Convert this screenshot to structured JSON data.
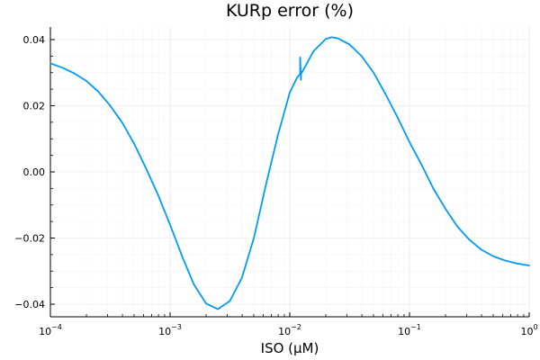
{
  "chart_data": {
    "type": "line",
    "title": "KURp error (%)",
    "xlabel": "ISO (μM)",
    "ylabel": "",
    "xscale": "log",
    "xlim": [
      0.0001,
      1
    ],
    "ylim": [
      -0.0438,
      0.0438
    ],
    "grid": true,
    "legend": "none",
    "x_ticks": [
      {
        "value": 0.0001,
        "base": "10",
        "exp": "−4"
      },
      {
        "value": 0.001,
        "base": "10",
        "exp": "−3"
      },
      {
        "value": 0.01,
        "base": "10",
        "exp": "−2"
      },
      {
        "value": 0.1,
        "base": "10",
        "exp": "−1"
      },
      {
        "value": 1,
        "base": "10",
        "exp": "0"
      }
    ],
    "y_ticks": [
      {
        "value": 0.04,
        "label": "0.04"
      },
      {
        "value": 0.02,
        "label": "0.02"
      },
      {
        "value": 0.0,
        "label": "0.00"
      },
      {
        "value": -0.02,
        "label": "−0.02"
      },
      {
        "value": -0.04,
        "label": "−0.04"
      }
    ],
    "series": [
      {
        "color": "#009af9",
        "x": [
          0.0001,
          0.000126,
          0.000158,
          0.0002,
          0.000251,
          0.000316,
          0.000398,
          0.000501,
          0.000631,
          0.000794,
          0.001,
          0.00126,
          0.00158,
          0.002,
          0.00251,
          0.00316,
          0.00398,
          0.00501,
          0.00631,
          0.00794,
          0.01,
          0.0115,
          0.0122,
          0.0122,
          0.0124,
          0.0124,
          0.0126,
          0.0158,
          0.02,
          0.0224,
          0.0251,
          0.0316,
          0.0398,
          0.0501,
          0.0631,
          0.0794,
          0.1,
          0.126,
          0.158,
          0.2,
          0.251,
          0.316,
          0.398,
          0.501,
          0.631,
          0.794,
          1
        ],
        "y": [
          0.0328,
          0.0315,
          0.0298,
          0.0275,
          0.0243,
          0.02,
          0.0149,
          0.0085,
          0.001,
          -0.007,
          -0.016,
          -0.0255,
          -0.034,
          -0.0398,
          -0.0415,
          -0.039,
          -0.032,
          -0.02,
          -0.004,
          0.011,
          0.024,
          0.0285,
          0.0296,
          0.0346,
          0.0278,
          0.0296,
          0.03,
          0.0365,
          0.0402,
          0.0407,
          0.0404,
          0.0385,
          0.035,
          0.03,
          0.0235,
          0.0165,
          0.009,
          0.0022,
          -0.005,
          -0.0112,
          -0.0165,
          -0.0205,
          -0.0235,
          -0.0255,
          -0.0268,
          -0.0277,
          -0.0283
        ]
      }
    ]
  }
}
